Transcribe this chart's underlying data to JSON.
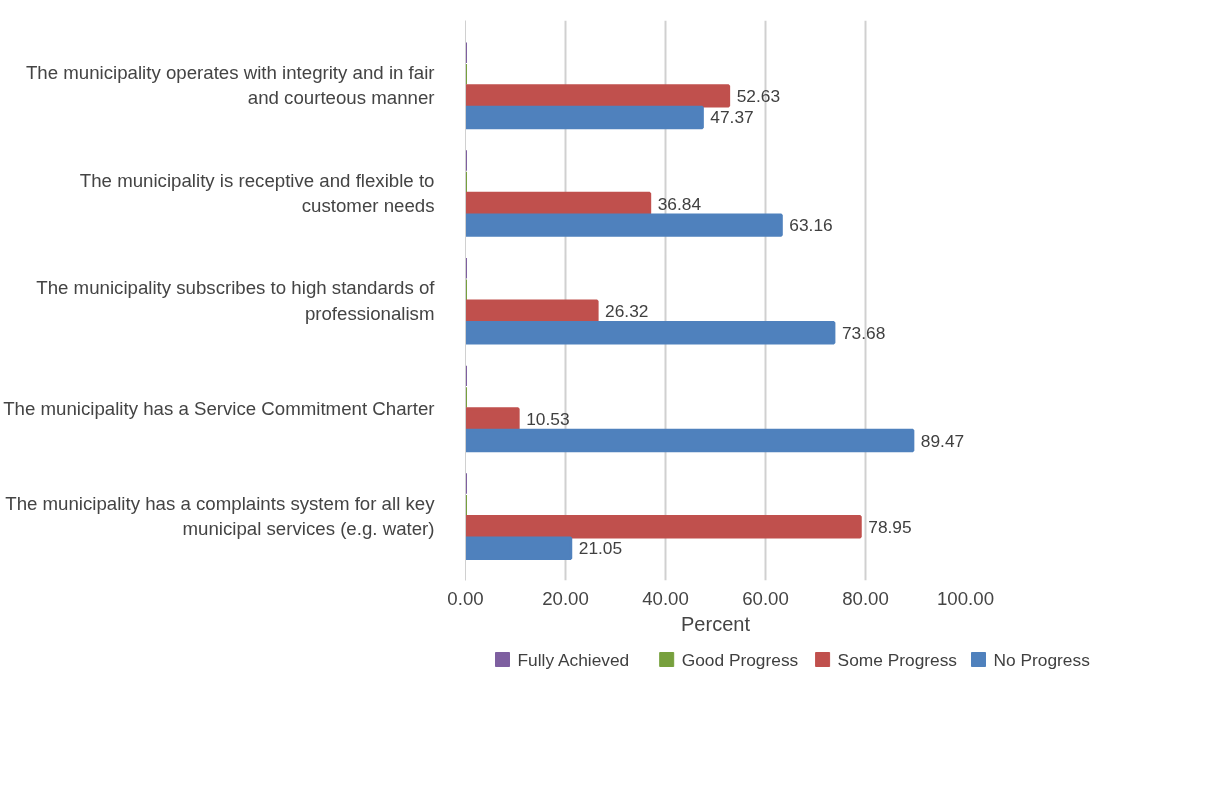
{
  "chart_data": {
    "type": "bar",
    "orientation": "horizontal",
    "xlabel": "Percent",
    "legend": "bottom",
    "grid": "x",
    "categories": [
      "The municipality operates with integrity and in fair and courteous manner",
      "The municipality is receptive and flexible to customer needs",
      "The municipality subscribes to high standards of professionalism",
      "The municipality has a Service Commitment Charter",
      "The municipality has a complaints system for all key municipal services (e.g. water)"
    ],
    "xlim": [
      0,
      100
    ],
    "xticks": [
      {
        "value": 0,
        "label": "0.00"
      },
      {
        "value": 20,
        "label": "20.00"
      },
      {
        "value": 40,
        "label": "40.00"
      },
      {
        "value": 60,
        "label": "60.00"
      },
      {
        "value": 80,
        "label": "80.00"
      },
      {
        "value": 100,
        "label": "100.00"
      }
    ],
    "series": [
      {
        "name": "Fully Achieved",
        "color": "#7e5fa0",
        "values": [
          0,
          0,
          0,
          0,
          0
        ],
        "value_labels": [
          null,
          null,
          null,
          null,
          null
        ]
      },
      {
        "name": "Good Progress",
        "color": "#77a03d",
        "values": [
          0,
          0,
          0,
          0,
          0
        ],
        "value_labels": [
          null,
          null,
          null,
          null,
          null
        ]
      },
      {
        "name": "Some Progress",
        "color": "#c0504d",
        "values": [
          52.63,
          36.84,
          26.32,
          10.53,
          78.95
        ],
        "value_labels": [
          "52.63",
          "36.84",
          "26.32",
          "10.53",
          "78.95"
        ]
      },
      {
        "name": "No Progress",
        "color": "#4f81bd",
        "values": [
          47.37,
          63.16,
          73.68,
          89.47,
          21.05
        ],
        "value_labels": [
          "47.37",
          "63.16",
          "73.68",
          "89.47",
          "21.05"
        ]
      }
    ]
  }
}
